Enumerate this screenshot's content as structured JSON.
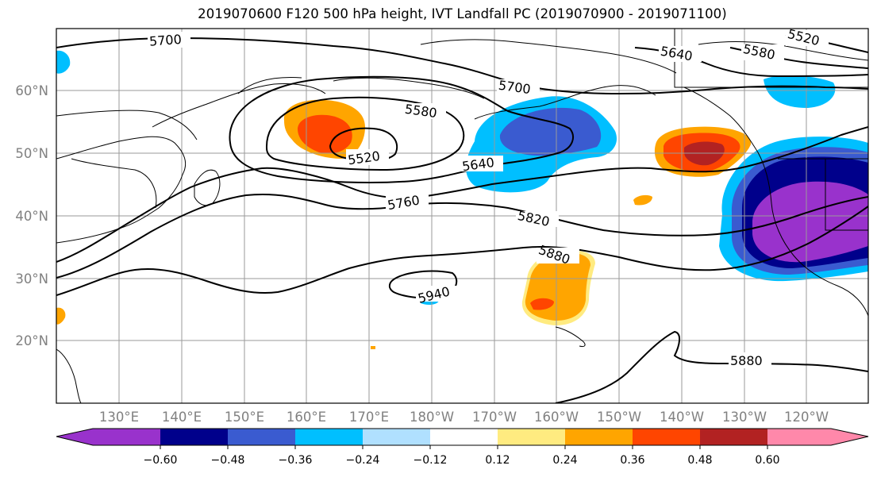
{
  "title": "2019070600 F120 500 hPa height, IVT Landfall PC (2019070900 - 2019071100)",
  "map": {
    "lat_ticks": [
      "60°N",
      "50°N",
      "40°N",
      "30°N",
      "20°N"
    ],
    "lon_ticks": [
      "130°E",
      "140°E",
      "150°E",
      "160°E",
      "170°E",
      "180°W",
      "170°W",
      "160°W",
      "150°W",
      "140°W",
      "130°W",
      "120°W"
    ],
    "contour_labels": [
      "5520",
      "5580",
      "5640",
      "5700",
      "5760",
      "5820",
      "5880",
      "5940"
    ],
    "gridlines": true
  },
  "colorbar": {
    "tick_labels": [
      "−0.60",
      "−0.48",
      "−0.36",
      "−0.24",
      "−0.12",
      "0.12",
      "0.24",
      "0.36",
      "0.48",
      "0.60"
    ],
    "colors": [
      "#9932CC",
      "#00008B",
      "#3A5BD0",
      "#00BFFF",
      "#B0E0FF",
      "#FFFFFF",
      "#FFEB80",
      "#FFA500",
      "#FF4500",
      "#B22222",
      "#FF88AA"
    ],
    "extend": "both"
  }
}
